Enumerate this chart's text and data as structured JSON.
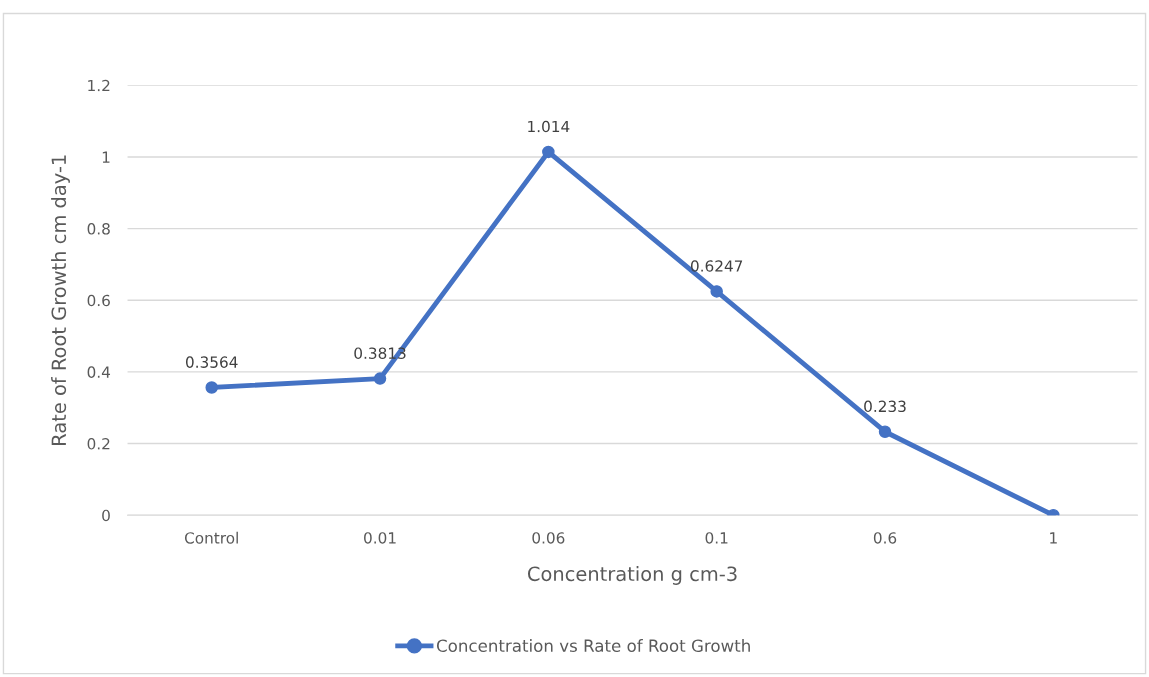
{
  "chart_data": {
    "type": "line",
    "xlabel": "Concentration g cm-3",
    "ylabel": "Rate of Root Growth cm day-1",
    "categories": [
      "Control",
      "0.01",
      "0.06",
      "0.1",
      "0.6",
      "1"
    ],
    "series": [
      {
        "name": "Concentration vs Rate of Root Growth",
        "color": "#4472c4",
        "values": [
          0.3564,
          0.3813,
          1.014,
          0.6247,
          0.233,
          0
        ],
        "value_labels": [
          "0.3564",
          "0.3813",
          "1.014",
          "0.6247",
          "0.233",
          null
        ]
      }
    ],
    "ylim": [
      0,
      1.2
    ],
    "yticks": [
      0,
      0.2,
      0.4,
      0.6,
      0.8,
      1,
      1.2
    ],
    "grid": "y",
    "legend": "bottom",
    "marker": "circle",
    "line_style": "solid"
  }
}
